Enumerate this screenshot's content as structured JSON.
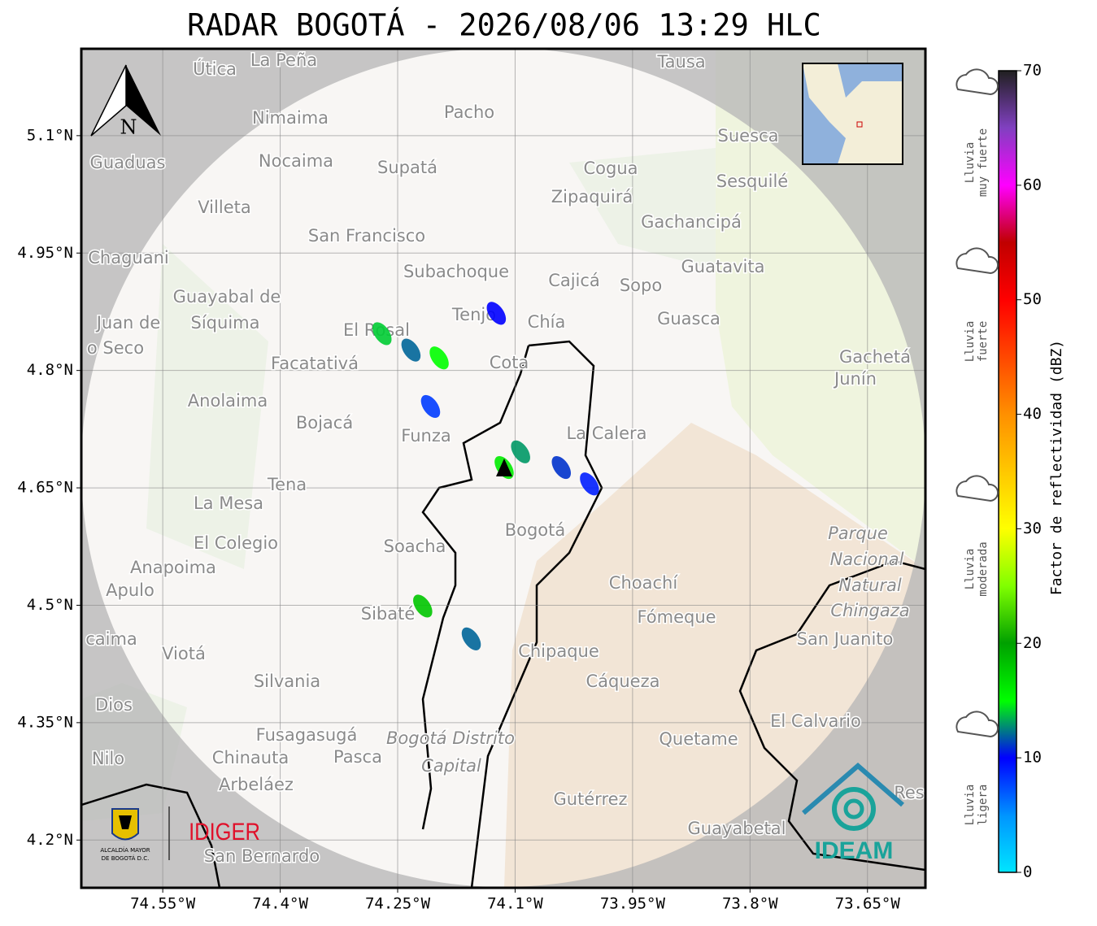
{
  "map": {
    "title": "RADAR BOGOTÁ - 2026/08/06 13:29 HLC",
    "xlim": [
      -74.654,
      -73.576
    ],
    "ylim": [
      4.139,
      5.211
    ],
    "lon_ticks": [
      {
        "value": -74.55,
        "label": "74.55°W"
      },
      {
        "value": -74.4,
        "label": "74.4°W"
      },
      {
        "value": -74.25,
        "label": "74.25°W"
      },
      {
        "value": -74.1,
        "label": "74.1°W"
      },
      {
        "value": -73.95,
        "label": "73.95°W"
      },
      {
        "value": -73.8,
        "label": "73.8°W"
      },
      {
        "value": -73.65,
        "label": "73.65°W"
      }
    ],
    "lat_ticks": [
      {
        "value": 5.1,
        "label": "5.1°N"
      },
      {
        "value": 4.95,
        "label": "4.95°N"
      },
      {
        "value": 4.8,
        "label": "4.8°N"
      },
      {
        "value": 4.65,
        "label": "4.65°N"
      },
      {
        "value": 4.5,
        "label": "4.5°N"
      },
      {
        "value": 4.35,
        "label": "4.35°N"
      },
      {
        "value": 4.2,
        "label": "4.2°N"
      }
    ],
    "north": "N",
    "places": [
      "La Peña",
      "Útica",
      "Tausa",
      "Pacho",
      "Nimaima",
      "Suesca",
      "Guaduas",
      "Nocaima",
      "Supatá",
      "Cogua",
      "Sesquilé",
      "Zipaquirá",
      "Villeta",
      "Gachancipá",
      "San Francisco",
      "Chaguani",
      "Guatavita",
      "Subachoque",
      "Cajicá",
      "Sopo",
      "Guayabal de",
      "Síquima",
      "Juan de",
      "Tenjo",
      "Chía",
      "Guasca",
      "o Seco",
      "El Rosal",
      "Facatativá",
      "Cota",
      "Gachetá",
      "Junín",
      "Anolaima",
      "Bojacá",
      "Funza",
      "La Calera",
      "Tena",
      "La Mesa",
      "Bogotá",
      "Soacha",
      "Parque",
      "Nacional",
      "Natural",
      "Chingaza",
      "El Colegio",
      "Anapoima",
      "Apulo",
      "Choachí",
      "Sibaté",
      "Fómeque",
      "San Juanito",
      "caima",
      "Viotá",
      "Chipaque",
      "Silvania",
      "Cáqueza",
      "Dios",
      "El Calvario",
      "Fusagasugá",
      "Bogotá Distrito",
      "Quetame",
      "Nilo",
      "Chinauta",
      "Pasca",
      "Capital",
      "Arbeláez",
      "Gutérrez",
      "Res",
      "Guayabetal",
      "San Bernardo"
    ],
    "echoes": [
      {
        "lon": -74.27,
        "lat": 4.847,
        "dbz": 14
      },
      {
        "lon": -74.233,
        "lat": 4.826,
        "dbz": 12
      },
      {
        "lon": -74.197,
        "lat": 4.816,
        "dbz": 15
      },
      {
        "lon": -74.124,
        "lat": 4.873,
        "dbz": 10
      },
      {
        "lon": -74.093,
        "lat": 4.696,
        "dbz": 13
      },
      {
        "lon": -74.114,
        "lat": 4.676,
        "dbz": 16
      },
      {
        "lon": -74.041,
        "lat": 4.676,
        "dbz": 11
      },
      {
        "lon": -74.005,
        "lat": 4.655,
        "dbz": 9
      },
      {
        "lon": -74.218,
        "lat": 4.499,
        "dbz": 18
      },
      {
        "lon": -74.156,
        "lat": 4.457,
        "dbz": 12
      },
      {
        "lon": -74.208,
        "lat": 4.754,
        "dbz": 8
      }
    ],
    "colorbar": {
      "label": "Factor de reflectividad (dBZ)",
      "lim": [
        0,
        70
      ],
      "ticks": [
        0,
        10,
        20,
        30,
        40,
        50,
        60,
        70
      ]
    },
    "rain_levels": [
      [
        "Lluvia",
        "muy fuerte"
      ],
      [
        "Lluvia",
        "fuerte"
      ],
      [
        "Lluvia",
        "moderada"
      ],
      [
        "Lluvia",
        "ligera"
      ]
    ],
    "logos": {
      "alcaldia": [
        "ALCALDÍA MAYOR",
        "DE BOGOTÁ D.C."
      ],
      "idiger": "IDIGER",
      "ideam": "IDEAM"
    }
  }
}
